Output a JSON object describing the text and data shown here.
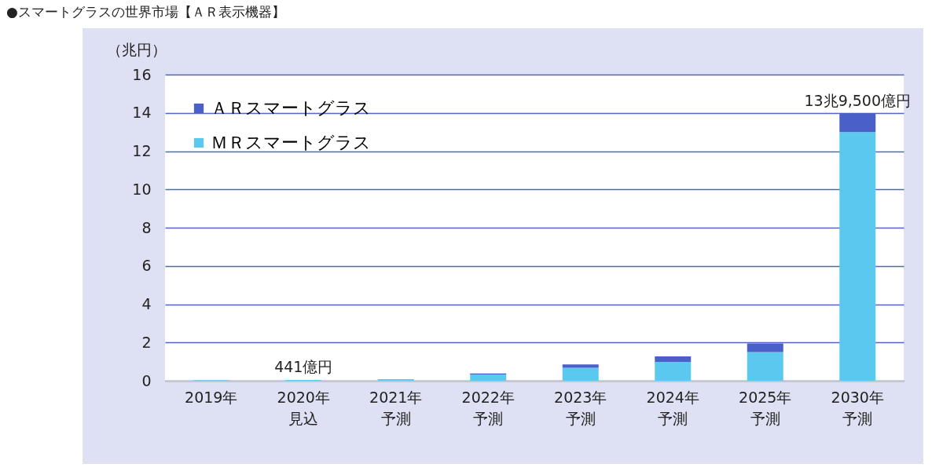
{
  "chart_data": {
    "type": "bar",
    "title": "●スマートグラスの世界市場【ＡＲ表示機器】",
    "ylabel": "（兆円）",
    "categories": [
      "2019年",
      "2020年見込",
      "2021年予測",
      "2022年予測",
      "2023年予測",
      "2024年予測",
      "2025年予測",
      "2030年予測"
    ],
    "series": [
      {
        "name": "ＭＲスマートグラス",
        "color": "#5bc8ef",
        "values": [
          0.03,
          0.0441,
          0.08,
          0.33,
          0.68,
          0.98,
          1.5,
          13.0
        ]
      },
      {
        "name": "ＡＲスマートグラス",
        "color": "#4a5fc8",
        "values": [
          0,
          0,
          0,
          0.05,
          0.17,
          0.29,
          0.45,
          0.95
        ]
      }
    ],
    "stacked": true,
    "ylim": [
      0,
      16
    ],
    "yticks": [
      0,
      2,
      4,
      6,
      8,
      10,
      12,
      14,
      16
    ],
    "grid": "y",
    "legend": "top left",
    "annotations": [
      {
        "text": "441億円",
        "x": "2020年見込",
        "y": 0.0441
      },
      {
        "text": "13兆9,500億円",
        "x": "2030年予測",
        "y": 13.95
      }
    ]
  }
}
